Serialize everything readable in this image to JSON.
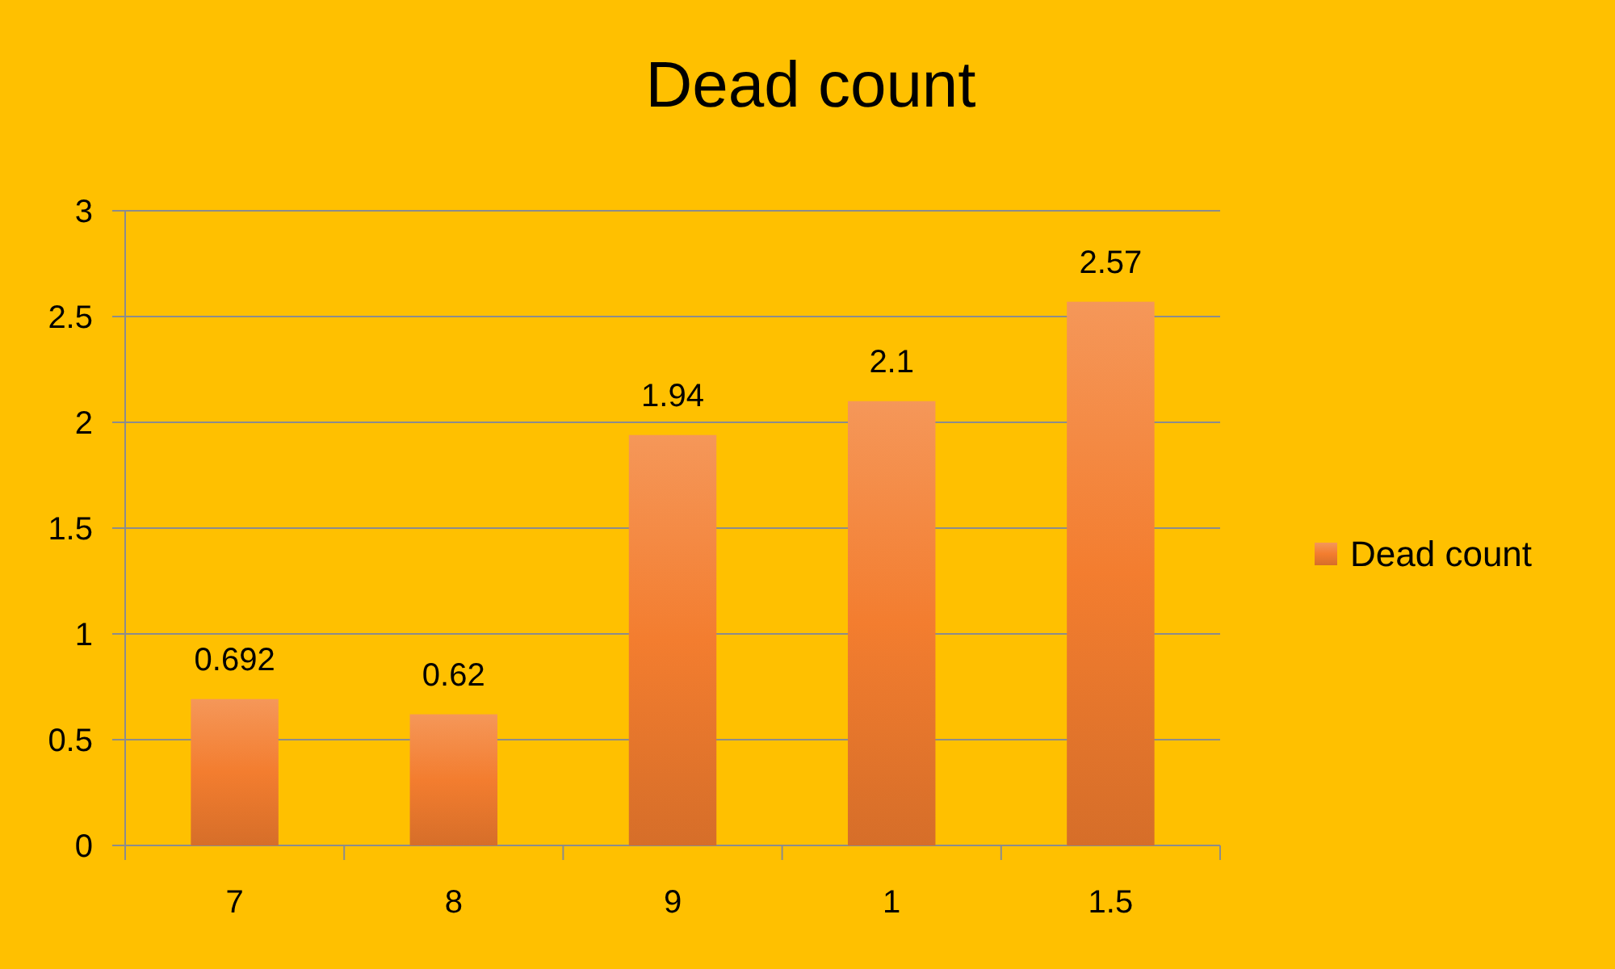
{
  "chart_data": {
    "type": "bar",
    "title": "Dead count",
    "categories": [
      "7",
      "8",
      "9",
      "1",
      "1.5"
    ],
    "series": [
      {
        "name": "Dead count",
        "color": "#f37d2f",
        "values": [
          0.692,
          0.62,
          1.94,
          2.1,
          2.57
        ]
      }
    ],
    "ylim": [
      0,
      3
    ],
    "yticks": [
      0,
      0.5,
      1,
      1.5,
      2,
      2.5,
      3
    ],
    "grid": "y",
    "legend": "right",
    "data_labels": true
  }
}
